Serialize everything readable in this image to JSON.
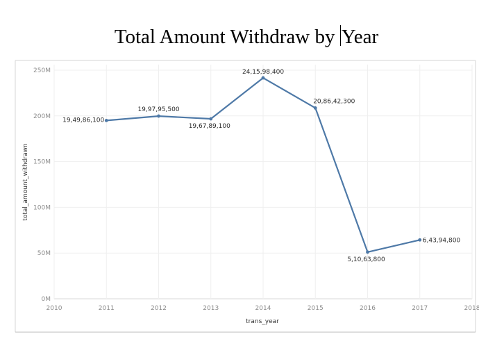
{
  "title_part1": "Total Amount Withdraw by ",
  "title_part2": "Year",
  "chart_data": {
    "type": "line",
    "title": "Total Amount Withdraw by Year",
    "xlabel": "trans_year",
    "ylabel": "total_amount_withdrawn",
    "x": [
      2011,
      2012,
      2013,
      2014,
      2015,
      2016,
      2017
    ],
    "values": [
      194986100,
      199795500,
      196789100,
      241598400,
      208642300,
      51063800,
      64394800
    ],
    "data_labels": [
      "19,49,86,100",
      "19,97,95,500",
      "19,67,89,100",
      "24,15,98,400",
      "20,86,42,300",
      "5,10,63,800",
      "6,43,94,800"
    ],
    "xlim": [
      2010,
      2018
    ],
    "ylim": [
      0,
      250000000
    ],
    "x_ticks": [
      "2010",
      "2011",
      "2012",
      "2013",
      "2014",
      "2015",
      "2016",
      "2017",
      "2018"
    ],
    "y_ticks": [
      "0M",
      "50M",
      "100M",
      "150M",
      "200M",
      "250M"
    ],
    "line_color": "#4e79a7",
    "grid": true
  }
}
